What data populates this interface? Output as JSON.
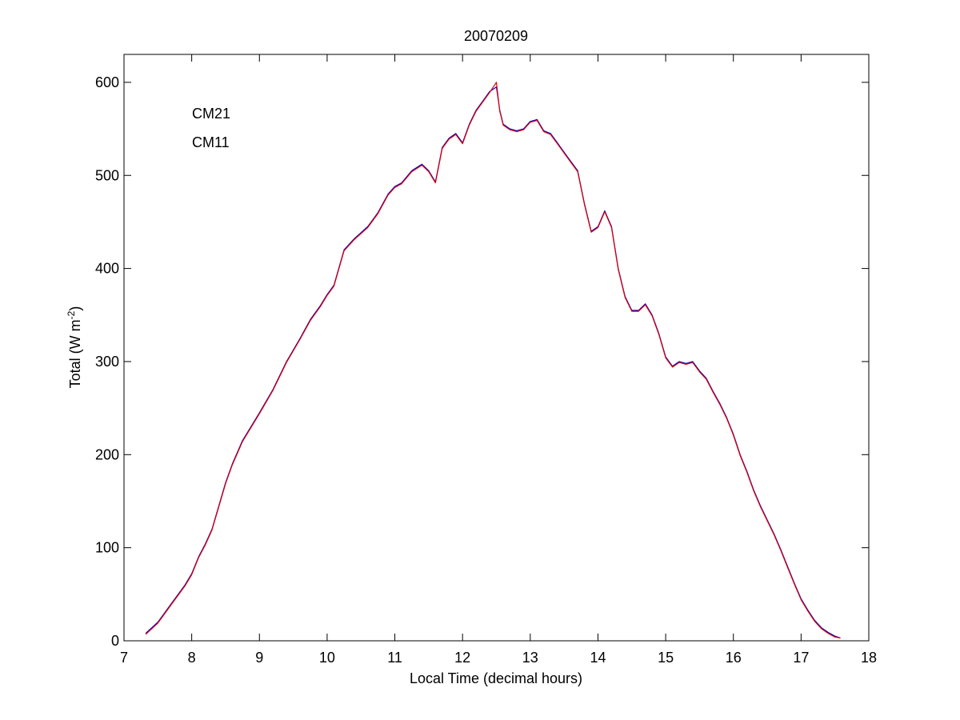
{
  "chart_data": {
    "type": "line",
    "title": "20070209",
    "xlabel": "Local Time (decimal hours)",
    "ylabel": {
      "prefix": "Total (W m",
      "superscript": "-2",
      "suffix": ")"
    },
    "xlim": [
      7,
      18
    ],
    "ylim": [
      0,
      630
    ],
    "xticks": [
      7,
      8,
      9,
      10,
      11,
      12,
      13,
      14,
      15,
      16,
      17,
      18
    ],
    "yticks": [
      0,
      100,
      200,
      300,
      400,
      500,
      600
    ],
    "grid": false,
    "legend_position": "top-left",
    "series": [
      {
        "name": "CM21",
        "color": "#0000cc",
        "x": [
          7.32,
          7.5,
          7.7,
          7.9,
          8.0,
          8.1,
          8.2,
          8.3,
          8.4,
          8.5,
          8.6,
          8.75,
          9.0,
          9.2,
          9.4,
          9.6,
          9.75,
          9.9,
          10.0,
          10.1,
          10.25,
          10.4,
          10.6,
          10.75,
          10.9,
          11.0,
          11.1,
          11.25,
          11.4,
          11.5,
          11.6,
          11.7,
          11.8,
          11.9,
          12.0,
          12.1,
          12.2,
          12.3,
          12.4,
          12.5,
          12.55,
          12.6,
          12.7,
          12.8,
          12.9,
          13.0,
          13.1,
          13.2,
          13.3,
          13.4,
          13.5,
          13.6,
          13.7,
          13.8,
          13.9,
          14.0,
          14.1,
          14.2,
          14.3,
          14.4,
          14.5,
          14.6,
          14.7,
          14.8,
          14.9,
          15.0,
          15.1,
          15.2,
          15.3,
          15.4,
          15.5,
          15.6,
          15.7,
          15.8,
          15.9,
          16.0,
          16.1,
          16.2,
          16.3,
          16.4,
          16.5,
          16.6,
          16.7,
          16.8,
          16.9,
          17.0,
          17.1,
          17.2,
          17.3,
          17.4,
          17.5,
          17.58
        ],
        "y": [
          8,
          20,
          40,
          60,
          72,
          90,
          104,
          120,
          145,
          170,
          190,
          215,
          245,
          270,
          300,
          325,
          345,
          360,
          372,
          382,
          420,
          432,
          445,
          460,
          480,
          488,
          492,
          505,
          512,
          505,
          493,
          530,
          540,
          545,
          535,
          555,
          570,
          580,
          590,
          595,
          570,
          555,
          550,
          548,
          550,
          558,
          560,
          548,
          545,
          535,
          525,
          515,
          505,
          470,
          440,
          445,
          462,
          445,
          400,
          370,
          355,
          355,
          362,
          350,
          330,
          305,
          295,
          300,
          298,
          300,
          290,
          282,
          268,
          255,
          240,
          222,
          200,
          182,
          162,
          145,
          130,
          115,
          98,
          80,
          62,
          45,
          33,
          22,
          14,
          9,
          5,
          3
        ]
      },
      {
        "name": "CM11",
        "color": "#dd0000",
        "x": [
          7.32,
          7.5,
          7.7,
          7.9,
          8.0,
          8.1,
          8.2,
          8.3,
          8.4,
          8.5,
          8.6,
          8.75,
          9.0,
          9.2,
          9.4,
          9.6,
          9.75,
          9.9,
          10.0,
          10.1,
          10.25,
          10.4,
          10.6,
          10.75,
          10.9,
          11.0,
          11.1,
          11.25,
          11.4,
          11.5,
          11.6,
          11.7,
          11.8,
          11.9,
          12.0,
          12.1,
          12.2,
          12.3,
          12.4,
          12.5,
          12.55,
          12.6,
          12.7,
          12.8,
          12.9,
          13.0,
          13.1,
          13.2,
          13.3,
          13.4,
          13.5,
          13.6,
          13.7,
          13.8,
          13.9,
          14.0,
          14.1,
          14.2,
          14.3,
          14.4,
          14.5,
          14.6,
          14.7,
          14.8,
          14.9,
          15.0,
          15.1,
          15.2,
          15.3,
          15.4,
          15.5,
          15.6,
          15.7,
          15.8,
          15.9,
          16.0,
          16.1,
          16.2,
          16.3,
          16.4,
          16.5,
          16.6,
          16.7,
          16.8,
          16.9,
          17.0,
          17.1,
          17.2,
          17.3,
          17.4,
          17.5,
          17.58
        ],
        "y": [
          7,
          19,
          39,
          59,
          71,
          89,
          103,
          119,
          144,
          169,
          189,
          214,
          244,
          269,
          299,
          324,
          344,
          359,
          371,
          381,
          419,
          431,
          444,
          459,
          479,
          487,
          491,
          504,
          511,
          504,
          492,
          529,
          539,
          544,
          534,
          554,
          569,
          579,
          589,
          600,
          569,
          554,
          549,
          547,
          549,
          557,
          559,
          547,
          544,
          534,
          524,
          514,
          504,
          469,
          439,
          444,
          461,
          444,
          399,
          369,
          354,
          354,
          361,
          349,
          329,
          304,
          294,
          299,
          297,
          299,
          289,
          281,
          267,
          254,
          239,
          221,
          199,
          181,
          161,
          144,
          129,
          114,
          97,
          79,
          61,
          44,
          32,
          21,
          13,
          8,
          4,
          3
        ]
      }
    ]
  }
}
